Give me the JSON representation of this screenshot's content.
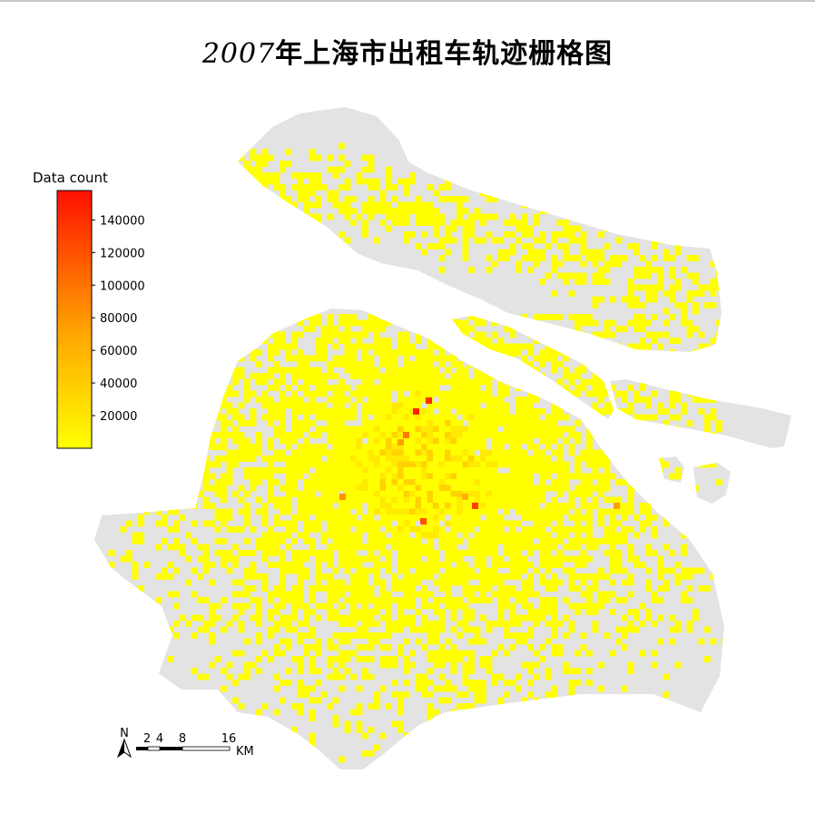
{
  "title": {
    "year": "2007",
    "text": "年上海市出租车轨迹栅格图"
  },
  "legend": {
    "title": "Data count",
    "ticks": [
      20000,
      40000,
      60000,
      80000,
      100000,
      120000,
      140000
    ],
    "min": 0,
    "max": 158000,
    "colors": {
      "low": "#ffff00",
      "mid": "#ff9900",
      "high": "#ff0000"
    }
  },
  "scalebar": {
    "north": "N",
    "labels": [
      "2",
      "4",
      "8",
      "16"
    ],
    "unit": "KM"
  },
  "colors": {
    "land": "#e3e3e3",
    "cell": "#ffff00"
  }
}
